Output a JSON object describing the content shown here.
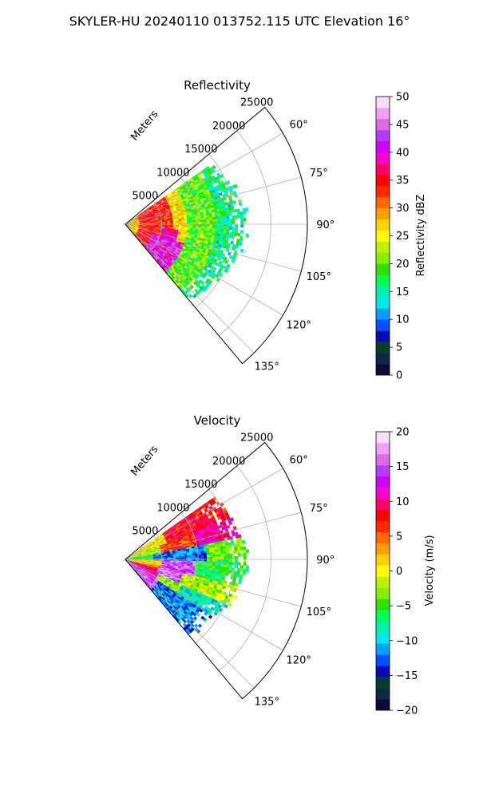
{
  "figure": {
    "suptitle": "SKYLER-HU  20240110  013752.115 UTC Elevation 16°"
  },
  "chart_data": [
    {
      "type": "heatmap",
      "subtype": "polar-sector",
      "title": "Reflectivity",
      "radial_axis_label": "Meters",
      "radial_ticks": [
        5000,
        10000,
        15000,
        20000,
        25000
      ],
      "radial_tick_labels": [
        "5000",
        "10000",
        "15000",
        "20000",
        "25000"
      ],
      "radial_range": [
        0,
        25000
      ],
      "angle_range_deg": [
        50,
        140
      ],
      "angle_ticks_deg": [
        60,
        75,
        90,
        105,
        120,
        135
      ],
      "angle_tick_labels": [
        "60°",
        "75°",
        "90°",
        "105°",
        "120°",
        "135°"
      ],
      "grid": true,
      "colorbar": {
        "label": "Reflectivity dBZ",
        "min": 0,
        "max": 50,
        "ticks": [
          0,
          5,
          10,
          15,
          20,
          25,
          30,
          35,
          40,
          45,
          50
        ],
        "tick_labels": [
          "0",
          "5",
          "10",
          "15",
          "20",
          "25",
          "30",
          "35",
          "40",
          "45",
          "50"
        ],
        "colors": [
          "#0b0b3a",
          "#0a2a4a",
          "#063f2a",
          "#0a0ab4",
          "#0050ff",
          "#00a0ff",
          "#00e8e8",
          "#00f0b0",
          "#00ff50",
          "#30e000",
          "#80f000",
          "#c0f000",
          "#ffff00",
          "#ffd200",
          "#ffa000",
          "#ff6a00",
          "#ff2a00",
          "#ff0000",
          "#ff0064",
          "#ff00c8",
          "#d000ff",
          "#b43cff",
          "#e06ae6",
          "#f0a0f0",
          "#fadcff"
        ]
      },
      "data_sample": [
        {
          "radius_m": 2500,
          "angle_deg": 90,
          "value": 28
        },
        {
          "radius_m": 7500,
          "angle_deg": 85,
          "value": 36
        },
        {
          "radius_m": 9000,
          "angle_deg": 115,
          "value": 40
        },
        {
          "radius_m": 12000,
          "angle_deg": 75,
          "value": 22
        },
        {
          "radius_m": 15000,
          "angle_deg": 95,
          "value": 18
        },
        {
          "radius_m": 17000,
          "angle_deg": 65,
          "value": 15
        }
      ]
    },
    {
      "type": "heatmap",
      "subtype": "polar-sector",
      "title": "Velocity",
      "radial_axis_label": "Meters",
      "radial_ticks": [
        5000,
        10000,
        15000,
        20000,
        25000
      ],
      "radial_tick_labels": [
        "5000",
        "10000",
        "15000",
        "20000",
        "25000"
      ],
      "radial_range": [
        0,
        25000
      ],
      "angle_range_deg": [
        50,
        140
      ],
      "angle_ticks_deg": [
        60,
        75,
        90,
        105,
        120,
        135
      ],
      "angle_tick_labels": [
        "60°",
        "75°",
        "90°",
        "105°",
        "120°",
        "135°"
      ],
      "grid": true,
      "colorbar": {
        "label": "Velocity (m/s)",
        "min": -20,
        "max": 20,
        "ticks": [
          -20,
          -15,
          -10,
          -5,
          0,
          5,
          10,
          15,
          20
        ],
        "tick_labels": [
          "−20",
          "−15",
          "−10",
          "−5",
          "0",
          "5",
          "10",
          "15",
          "20"
        ],
        "colors": [
          "#0b0b3a",
          "#0a2a4a",
          "#063f2a",
          "#0a0ab4",
          "#0050ff",
          "#00a0ff",
          "#00e8e8",
          "#00f0b0",
          "#00ff50",
          "#30e000",
          "#80f000",
          "#c0f000",
          "#ffff00",
          "#ffd200",
          "#ffa000",
          "#ff6a00",
          "#ff2a00",
          "#ff0000",
          "#ff0064",
          "#ff00c8",
          "#d000ff",
          "#b43cff",
          "#e06ae6",
          "#f0a0f0",
          "#fadcff"
        ]
      },
      "data_sample": [
        {
          "radius_m": 6000,
          "angle_deg": 70,
          "value": 2
        },
        {
          "radius_m": 12000,
          "angle_deg": 80,
          "value": 10
        },
        {
          "radius_m": 8000,
          "angle_deg": 92,
          "value": -12
        },
        {
          "radius_m": 9000,
          "angle_deg": 108,
          "value": 16
        },
        {
          "radius_m": 13000,
          "angle_deg": 120,
          "value": -8
        },
        {
          "radius_m": 15000,
          "angle_deg": 100,
          "value": -4
        }
      ]
    }
  ]
}
